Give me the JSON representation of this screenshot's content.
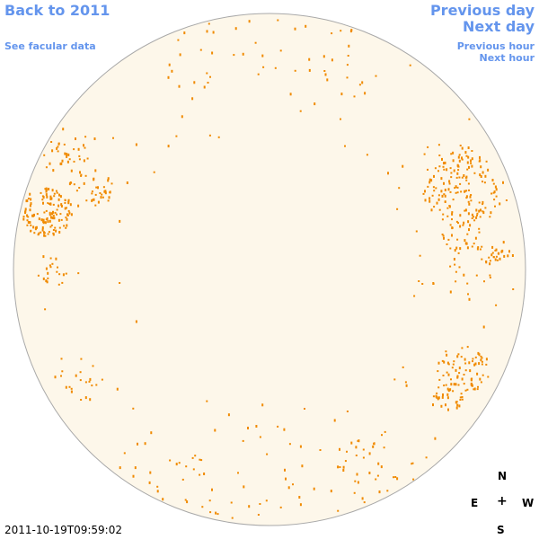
{
  "nav": {
    "back_year": "Back to 2011",
    "facular_link": "See facular data",
    "previous_day": "Previous day",
    "next_day": "Next day",
    "previous_hour": "Previous hour",
    "next_hour": "Next hour"
  },
  "compass": {
    "north": "N",
    "east": "E",
    "center": "+",
    "west": "W",
    "south": "S"
  },
  "timestamp": "2011-10-19T09:59:02",
  "colors": {
    "disk_fill": "#fdf7ea",
    "disk_stroke": "#a9a9a9",
    "feature": "#f08a00",
    "link": "#6495ed"
  }
}
